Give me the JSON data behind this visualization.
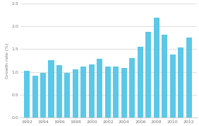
{
  "years": [
    1992,
    1993,
    1994,
    1995,
    1996,
    1997,
    1998,
    1999,
    2000,
    2001,
    2002,
    2003,
    2004,
    2005,
    2006,
    2007,
    2008,
    2009,
    2010,
    2011,
    2012
  ],
  "values": [
    1.03,
    0.92,
    0.98,
    1.25,
    1.15,
    0.98,
    1.06,
    1.12,
    1.16,
    1.28,
    1.11,
    1.11,
    1.09,
    1.31,
    1.55,
    1.88,
    2.18,
    1.82,
    1.38,
    1.53,
    1.76
  ],
  "bar_color": "#5bc8e8",
  "ylabel": "Growth rate (%)",
  "ylim": [
    0,
    2.5
  ],
  "yticks": [
    0.0,
    0.5,
    1.0,
    1.5,
    2.0,
    2.5
  ],
  "xtick_years": [
    1992,
    1994,
    1996,
    1998,
    2000,
    2002,
    2004,
    2006,
    2008,
    2010,
    2012
  ],
  "background_color": "#ffffff",
  "grid_color": "#d0d0d0",
  "bar_width": 0.7
}
